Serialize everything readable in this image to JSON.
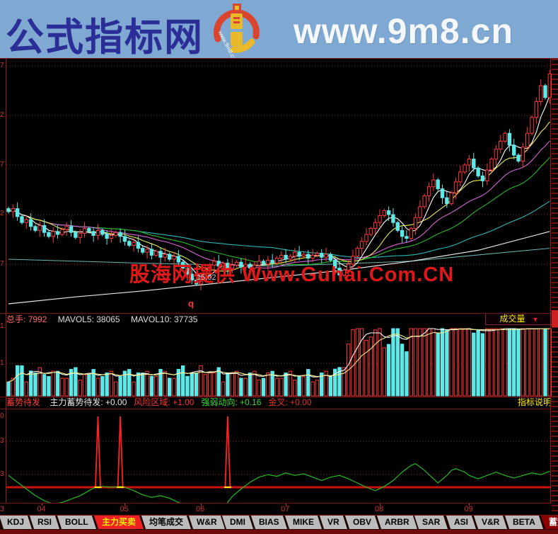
{
  "banner": {
    "title": "公式指标网",
    "url": "www.9m8.cn",
    "logo_text": "www.9m8.cn"
  },
  "watermark": {
    "text": "股海网提供 Www.Guhai.Com.CN",
    "price_marker": "←15.02",
    "flag": "q"
  },
  "main_chart": {
    "y_axis_partial_labels": [
      "7",
      "2",
      "7",
      "2",
      "7"
    ],
    "price_top": 37,
    "price_per_grid": 5,
    "closes": [
      22.3,
      22.6,
      21.8,
      21.2,
      21.5,
      20.8,
      20.4,
      20.9,
      20.2,
      19.8,
      20.3,
      20.0,
      20.5,
      20.8,
      20.2,
      19.7,
      20.1,
      20.6,
      20.3,
      19.9,
      20.4,
      20.0,
      19.6,
      19.9,
      20.2,
      19.8,
      19.3,
      18.9,
      19.2,
      18.6,
      18.2,
      18.5,
      17.9,
      18.3,
      17.7,
      18.0,
      17.5,
      17.8,
      17.2,
      16.6,
      16.0,
      15.4,
      15.0,
      15.6,
      16.3,
      16.9,
      17.3,
      16.8,
      17.1,
      16.5,
      16.9,
      17.2,
      16.7,
      17.0,
      16.6,
      16.9,
      17.3,
      17.0,
      17.4,
      17.1,
      17.6,
      17.9,
      17.5,
      17.8,
      18.2,
      17.8,
      18.0,
      17.6,
      17.9,
      18.1,
      17.7,
      18.0,
      17.4,
      16.6,
      15.9,
      16.4,
      17.0,
      17.8,
      18.6,
      19.3,
      20.0,
      20.6,
      21.2,
      21.9,
      22.4,
      22.0,
      21.2,
      20.4,
      19.8,
      19.6,
      20.6,
      21.7,
      22.8,
      23.9,
      24.8,
      25.5,
      24.6,
      23.7,
      23.1,
      24.2,
      25.3,
      26.3,
      27.0,
      27.6,
      26.7,
      25.9,
      25.4,
      26.5,
      27.6,
      28.6,
      29.4,
      30.2,
      29.0,
      28.0,
      27.4,
      28.8,
      30.2,
      31.8,
      33.4,
      35.0,
      33.8,
      36.2
    ],
    "trend_line_white": [
      [
        0,
        13.0
      ],
      [
        15,
        13.7
      ],
      [
        30,
        14.3
      ],
      [
        45,
        15.0
      ],
      [
        60,
        15.7
      ],
      [
        75,
        16.4
      ],
      [
        90,
        17.3
      ],
      [
        105,
        18.4
      ],
      [
        121,
        20.3
      ]
    ],
    "trend_line_dim": [
      [
        0,
        17.5
      ],
      [
        30,
        17.1
      ],
      [
        60,
        16.8
      ],
      [
        90,
        17.3
      ],
      [
        121,
        18.6
      ]
    ]
  },
  "volume_pane": {
    "fields": [
      {
        "label": "总手:",
        "value": "7992"
      },
      {
        "label": "MAVOL5:",
        "value": "38065"
      },
      {
        "label": "MAVOL10:",
        "value": "37735"
      }
    ],
    "dropdown_label": "成交量",
    "partial_labels": [
      "1",
      "1"
    ]
  },
  "indicator_pane": {
    "name": "蓄势待发",
    "fields": [
      {
        "label": "主力蓄势待发:",
        "value": "+0.00",
        "color": "#e8e8e8"
      },
      {
        "label": "风险区域:",
        "value": "+1.00",
        "color": "#ff3232"
      },
      {
        "label": "强弱动向:",
        "value": "+0.16",
        "color": "#33dd33"
      },
      {
        "label": "金叉:",
        "value": "+0.00",
        "color": "#dd3322"
      }
    ],
    "right_label": "指标说明",
    "partial_labels": [
      "0",
      "3",
      "3"
    ],
    "baseline_value": 0.16,
    "spike_days": [
      20,
      25,
      49
    ],
    "spike_value": 1.0,
    "osc": [
      [
        0,
        0.3
      ],
      [
        2,
        0.22
      ],
      [
        4,
        0.14
      ],
      [
        6,
        0.06
      ],
      [
        8,
        0.0
      ],
      [
        10,
        -0.04
      ],
      [
        12,
        -0.02
      ],
      [
        14,
        0.02
      ],
      [
        16,
        0.06
      ],
      [
        18,
        0.12
      ],
      [
        19,
        0.15
      ],
      [
        20,
        0.16
      ],
      [
        21,
        0.17
      ],
      [
        23,
        0.16
      ],
      [
        25,
        0.17
      ],
      [
        26,
        0.16
      ],
      [
        28,
        0.12
      ],
      [
        30,
        0.07
      ],
      [
        32,
        0.04
      ],
      [
        34,
        0.06
      ],
      [
        36,
        0.03
      ],
      [
        38,
        -0.02
      ],
      [
        40,
        -0.07
      ],
      [
        42,
        -0.04
      ],
      [
        43,
        -0.1
      ],
      [
        45,
        -0.19
      ],
      [
        46,
        -0.22
      ],
      [
        47,
        -0.17
      ],
      [
        48,
        -0.1
      ],
      [
        49,
        -0.02
      ],
      [
        50,
        0.05
      ],
      [
        52,
        0.14
      ],
      [
        54,
        0.22
      ],
      [
        56,
        0.28
      ],
      [
        58,
        0.31
      ],
      [
        60,
        0.29
      ],
      [
        62,
        0.33
      ],
      [
        64,
        0.3
      ],
      [
        66,
        0.32
      ],
      [
        68,
        0.28
      ],
      [
        70,
        0.24
      ],
      [
        72,
        0.28
      ],
      [
        74,
        0.3
      ],
      [
        76,
        0.26
      ],
      [
        78,
        0.21
      ],
      [
        80,
        0.16
      ],
      [
        82,
        0.12
      ],
      [
        84,
        0.17
      ],
      [
        86,
        0.24
      ],
      [
        88,
        0.34
      ],
      [
        90,
        0.42
      ],
      [
        91,
        0.44
      ],
      [
        93,
        0.36
      ],
      [
        95,
        0.26
      ],
      [
        96,
        0.21
      ],
      [
        98,
        0.3
      ],
      [
        99,
        0.36
      ],
      [
        100,
        0.38
      ],
      [
        102,
        0.34
      ],
      [
        103,
        0.3
      ],
      [
        105,
        0.26
      ],
      [
        107,
        0.3
      ],
      [
        109,
        0.34
      ],
      [
        111,
        0.3
      ],
      [
        113,
        0.27
      ],
      [
        115,
        0.3
      ],
      [
        117,
        0.33
      ],
      [
        119,
        0.31
      ],
      [
        121,
        0.35
      ]
    ]
  },
  "x_axis": {
    "months": [
      {
        "label": "3",
        "day": -1.7
      },
      {
        "label": "04",
        "day": 7.5
      },
      {
        "label": "05",
        "day": 26
      },
      {
        "label": "06",
        "day": 43
      },
      {
        "label": "07",
        "day": 62
      },
      {
        "label": "08",
        "day": 83
      },
      {
        "label": "09",
        "day": 103
      }
    ]
  },
  "tabs": [
    {
      "label": "KDJ",
      "style": "plain"
    },
    {
      "label": "RSI",
      "style": "plain"
    },
    {
      "label": "BOLL",
      "style": "plain"
    },
    {
      "label": "主力买卖",
      "style": "active-red"
    },
    {
      "label": "均笔成交",
      "style": "plain"
    },
    {
      "label": "W&R",
      "style": "plain"
    },
    {
      "label": "DMI",
      "style": "plain"
    },
    {
      "label": "BIAS",
      "style": "plain"
    },
    {
      "label": "MIKE",
      "style": "plain"
    },
    {
      "label": "VR",
      "style": "plain"
    },
    {
      "label": "OBV",
      "style": "plain"
    },
    {
      "label": "ARBR",
      "style": "plain"
    },
    {
      "label": "SAR",
      "style": "plain"
    },
    {
      "label": "ASI",
      "style": "plain"
    },
    {
      "label": "V&R",
      "style": "plain"
    },
    {
      "label": "BETA",
      "style": "plain"
    },
    {
      "label": "蓄势待发",
      "style": "dark-red"
    }
  ],
  "colors": {
    "up": "#ff3838",
    "down": "#5fe8e8",
    "grid": "#a32222",
    "ma5": "#ffffff",
    "ma10": "#eded55",
    "ma20": "#d565d5",
    "ma30": "#28b828",
    "ma60": "#2fb8b8",
    "trend_white": "#e8e8e8",
    "trend_dim": "#6fb3b3",
    "vol_ma5": "#ffffff",
    "vol_ma10": "#eded88",
    "osc_green": "#22bb22",
    "baseline_red": "#cc1111",
    "spike_red": "#ff2222"
  }
}
